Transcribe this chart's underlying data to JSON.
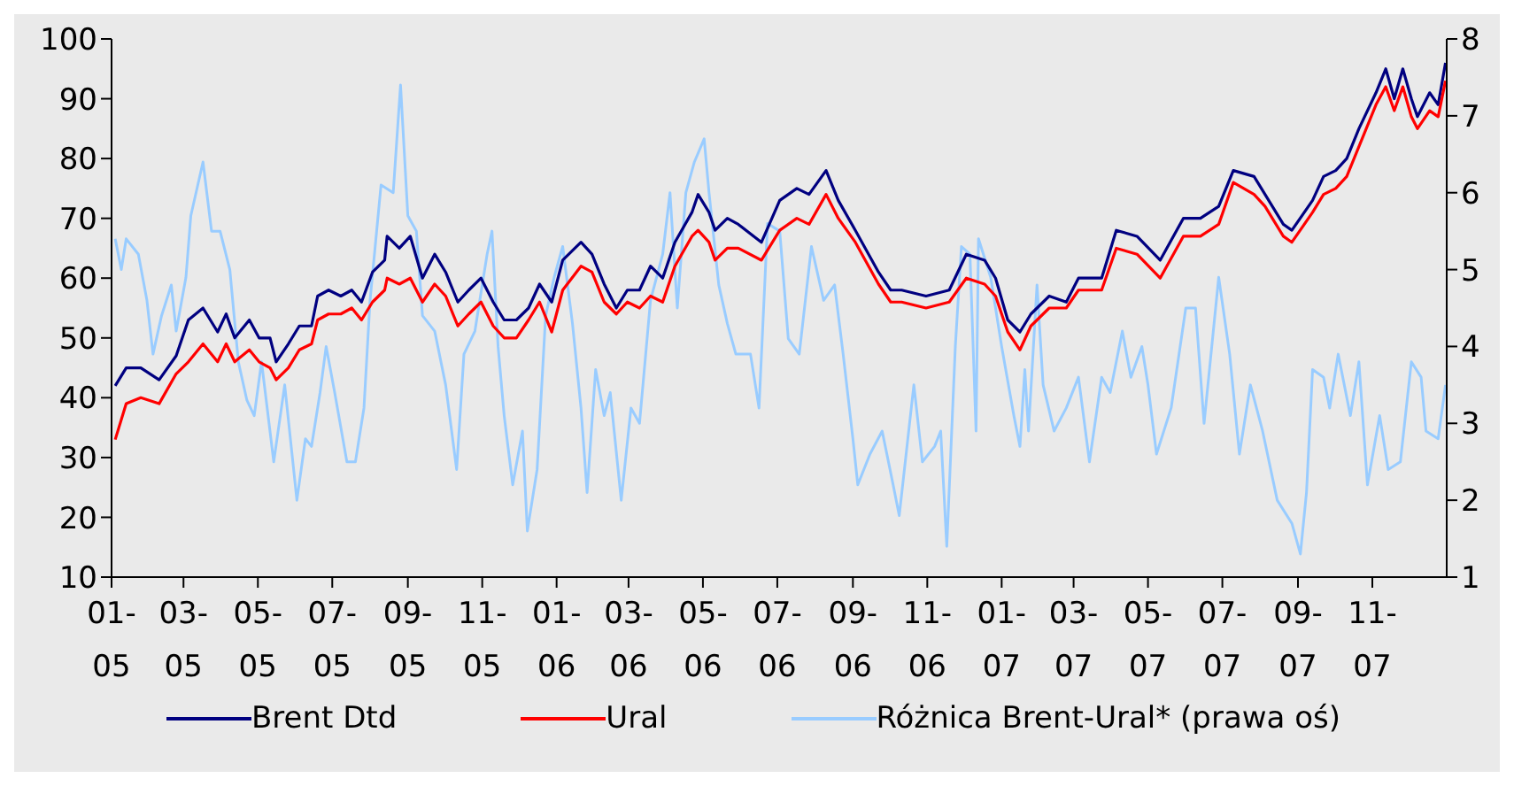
{
  "chart_data": {
    "type": "line",
    "xlim": [
      "2005-01-01",
      "2008-01-01"
    ],
    "xticks": [
      {
        "value": "2005-01-01",
        "label": "01-\n05"
      },
      {
        "value": "2005-03-01",
        "label": "03-\n05"
      },
      {
        "value": "2005-05-01",
        "label": "05-\n05"
      },
      {
        "value": "2005-07-01",
        "label": "07-\n05"
      },
      {
        "value": "2005-09-01",
        "label": "09-\n05"
      },
      {
        "value": "2005-11-01",
        "label": "11-\n05"
      },
      {
        "value": "2006-01-01",
        "label": "01-\n06"
      },
      {
        "value": "2006-03-01",
        "label": "03-\n06"
      },
      {
        "value": "2006-05-01",
        "label": "05-\n06"
      },
      {
        "value": "2006-07-01",
        "label": "07-\n06"
      },
      {
        "value": "2006-09-01",
        "label": "09-\n06"
      },
      {
        "value": "2006-11-01",
        "label": "11-\n06"
      },
      {
        "value": "2007-01-01",
        "label": "01-\n07"
      },
      {
        "value": "2007-03-01",
        "label": "03-\n07"
      },
      {
        "value": "2007-05-01",
        "label": "05-\n07"
      },
      {
        "value": "2007-07-01",
        "label": "07-\n07"
      },
      {
        "value": "2007-09-01",
        "label": "09-\n07"
      },
      {
        "value": "2007-11-01",
        "label": "11-\n07"
      }
    ],
    "ylim": [
      10,
      100
    ],
    "yticks": [
      10,
      20,
      30,
      40,
      50,
      60,
      70,
      80,
      90,
      100
    ],
    "y2lim": [
      1,
      8
    ],
    "y2ticks": [
      1,
      2,
      3,
      4,
      5,
      6,
      7,
      8
    ],
    "legend": "bottom",
    "grid": false,
    "marker": "none",
    "line_style": "solid",
    "x": [
      "2005-01-04",
      "2005-01-13",
      "2005-01-25",
      "2005-02-09",
      "2005-02-23",
      "2005-03-05",
      "2005-03-17",
      "2005-03-29",
      "2005-04-05",
      "2005-04-12",
      "2005-04-24",
      "2005-05-02",
      "2005-05-11",
      "2005-05-16",
      "2005-05-26",
      "2005-06-04",
      "2005-06-14",
      "2005-06-19",
      "2005-06-28",
      "2005-07-08",
      "2005-07-17",
      "2005-07-25",
      "2005-08-03",
      "2005-08-13",
      "2005-08-15",
      "2005-08-25",
      "2005-09-03",
      "2005-09-13",
      "2005-09-23",
      "2005-10-02",
      "2005-10-12",
      "2005-10-21",
      "2005-10-31",
      "2005-11-10",
      "2005-11-19",
      "2005-11-29",
      "2005-12-09",
      "2005-12-18",
      "2005-12-28",
      "2006-01-06",
      "2006-01-21",
      "2006-01-30",
      "2006-02-09",
      "2006-02-19",
      "2006-02-28",
      "2006-03-10",
      "2006-03-19",
      "2006-03-29",
      "2006-04-08",
      "2006-04-22",
      "2006-04-27",
      "2006-05-06",
      "2006-05-11",
      "2006-05-21",
      "2006-05-30",
      "2006-06-18",
      "2006-07-03",
      "2006-07-17",
      "2006-07-27",
      "2006-08-10",
      "2006-08-20",
      "2006-09-03",
      "2006-09-22",
      "2006-10-02",
      "2006-10-11",
      "2006-10-31",
      "2006-11-19",
      "2006-12-03",
      "2006-12-18",
      "2006-12-27",
      "2007-01-06",
      "2007-01-16",
      "2007-01-25",
      "2007-02-09",
      "2007-02-23",
      "2007-03-05",
      "2007-03-24",
      "2007-04-05",
      "2007-04-22",
      "2007-05-11",
      "2007-05-30",
      "2007-06-13",
      "2007-06-28",
      "2007-07-10",
      "2007-07-27",
      "2007-08-05",
      "2007-08-20",
      "2007-08-27",
      "2007-09-13",
      "2007-09-22",
      "2007-10-02",
      "2007-10-11",
      "2007-10-21",
      "2007-11-04",
      "2007-11-12",
      "2007-11-19",
      "2007-11-26",
      "2007-12-03",
      "2007-12-08",
      "2007-12-18",
      "2007-12-25",
      "2007-12-31"
    ],
    "series": [
      {
        "name": "Brent Dtd",
        "color": "#000080",
        "values": [
          42,
          45,
          45,
          43,
          47,
          53,
          55,
          51,
          54,
          50,
          53,
          50,
          50,
          46,
          49,
          52,
          52,
          57,
          58,
          57,
          58,
          56,
          61,
          63,
          67,
          65,
          67,
          60,
          64,
          61,
          56,
          58,
          60,
          56,
          53,
          53,
          55,
          59,
          56,
          63,
          66,
          64,
          59,
          55,
          58,
          58,
          62,
          60,
          66,
          71,
          74,
          71,
          68,
          70,
          69,
          66,
          73,
          75,
          74,
          78,
          73,
          68,
          61,
          58,
          58,
          57,
          58,
          64,
          63,
          60,
          53,
          51,
          54,
          57,
          56,
          60,
          60,
          68,
          67,
          63,
          70,
          70,
          72,
          78,
          77,
          74,
          69,
          68,
          73,
          77,
          78,
          80,
          85,
          91,
          95,
          90,
          95,
          90,
          87,
          91,
          89,
          96
        ]
      },
      {
        "name": "Ural",
        "color": "#ff0000",
        "values": [
          33,
          39,
          40,
          39,
          44,
          46,
          49,
          46,
          49,
          46,
          48,
          46,
          45,
          43,
          45,
          48,
          49,
          53,
          54,
          54,
          55,
          53,
          56,
          58,
          60,
          59,
          60,
          56,
          59,
          57,
          52,
          54,
          56,
          52,
          50,
          50,
          53,
          56,
          51,
          58,
          62,
          61,
          56,
          54,
          56,
          55,
          57,
          56,
          62,
          67,
          68,
          66,
          63,
          65,
          65,
          63,
          68,
          70,
          69,
          74,
          70,
          66,
          59,
          56,
          56,
          55,
          56,
          60,
          59,
          57,
          51,
          48,
          52,
          55,
          55,
          58,
          58,
          65,
          64,
          60,
          67,
          67,
          69,
          76,
          74,
          72,
          67,
          66,
          71,
          74,
          75,
          77,
          82,
          89,
          92,
          88,
          92,
          87,
          85,
          88,
          87,
          93
        ]
      },
      {
        "name": "Różnica Brent-Ural* (prawa oś)",
        "color": "#99ccff",
        "axis": "y2",
        "x": [
          "2005-01-04",
          "2005-01-09",
          "2005-01-13",
          "2005-01-23",
          "2005-01-30",
          "2005-02-04",
          "2005-02-11",
          "2005-02-19",
          "2005-02-23",
          "2005-03-03",
          "2005-03-07",
          "2005-03-17",
          "2005-03-24",
          "2005-03-31",
          "2005-04-08",
          "2005-04-15",
          "2005-04-22",
          "2005-04-28",
          "2005-05-04",
          "2005-05-14",
          "2005-05-23",
          "2005-06-02",
          "2005-06-09",
          "2005-06-14",
          "2005-06-21",
          "2005-06-26",
          "2005-07-03",
          "2005-07-13",
          "2005-07-20",
          "2005-07-27",
          "2005-08-01",
          "2005-08-10",
          "2005-08-20",
          "2005-08-26",
          "2005-09-01",
          "2005-09-08",
          "2005-09-13",
          "2005-09-23",
          "2005-10-02",
          "2005-10-11",
          "2005-10-17",
          "2005-10-26",
          "2005-11-05",
          "2005-11-09",
          "2005-11-14",
          "2005-11-19",
          "2005-11-26",
          "2005-12-04",
          "2005-12-08",
          "2005-12-16",
          "2005-12-23",
          "2005-12-30",
          "2006-01-06",
          "2006-01-14",
          "2006-01-21",
          "2006-01-26",
          "2006-02-02",
          "2006-02-09",
          "2006-02-14",
          "2006-02-23",
          "2006-03-03",
          "2006-03-10",
          "2006-03-19",
          "2006-03-29",
          "2006-04-04",
          "2006-04-10",
          "2006-04-17",
          "2006-04-24",
          "2006-05-02",
          "2006-05-06",
          "2006-05-14",
          "2006-05-21",
          "2006-05-28",
          "2006-06-09",
          "2006-06-16",
          "2006-06-23",
          "2006-07-03",
          "2006-07-10",
          "2006-07-19",
          "2006-07-29",
          "2006-08-08",
          "2006-08-17",
          "2006-08-24",
          "2006-09-01",
          "2006-09-05",
          "2006-09-15",
          "2006-09-25",
          "2006-10-04",
          "2006-10-09",
          "2006-10-21",
          "2006-10-28",
          "2006-11-07",
          "2006-11-12",
          "2006-11-17",
          "2006-11-24",
          "2006-11-29",
          "2006-12-06",
          "2006-12-11",
          "2006-12-13",
          "2006-12-23",
          "2007-01-01",
          "2007-01-11",
          "2007-01-16",
          "2007-01-20",
          "2007-01-23",
          "2007-01-30",
          "2007-02-04",
          "2007-02-13",
          "2007-02-23",
          "2007-03-05",
          "2007-03-14",
          "2007-03-24",
          "2007-03-31",
          "2007-04-10",
          "2007-04-17",
          "2007-04-26",
          "2007-05-01",
          "2007-05-08",
          "2007-05-20",
          "2007-06-01",
          "2007-06-09",
          "2007-06-16",
          "2007-06-28",
          "2007-07-07",
          "2007-07-15",
          "2007-07-24",
          "2007-08-03",
          "2007-08-15",
          "2007-08-27",
          "2007-09-03",
          "2007-09-08",
          "2007-09-13",
          "2007-09-22",
          "2007-09-27",
          "2007-10-04",
          "2007-10-14",
          "2007-10-21",
          "2007-10-28",
          "2007-11-07",
          "2007-11-14",
          "2007-11-24",
          "2007-12-03",
          "2007-12-11",
          "2007-12-15",
          "2007-12-25",
          "2007-12-31"
        ],
        "values": [
          5.4,
          5.0,
          5.4,
          5.2,
          4.6,
          3.9,
          4.4,
          4.8,
          4.2,
          4.9,
          5.7,
          6.4,
          5.5,
          5.5,
          5.0,
          3.8,
          3.3,
          3.1,
          3.8,
          2.5,
          3.5,
          2.0,
          2.8,
          2.7,
          3.4,
          4.0,
          3.4,
          2.5,
          2.5,
          3.2,
          4.6,
          6.1,
          6.0,
          7.4,
          5.7,
          5.5,
          4.4,
          4.2,
          3.5,
          2.4,
          3.9,
          4.2,
          5.2,
          5.5,
          4.0,
          3.1,
          2.2,
          2.9,
          1.6,
          2.4,
          4.4,
          4.9,
          5.3,
          4.3,
          3.2,
          2.1,
          3.7,
          3.1,
          3.4,
          2.0,
          3.2,
          3.0,
          4.6,
          5.2,
          6.0,
          4.5,
          6.0,
          6.4,
          6.7,
          6.0,
          4.8,
          4.3,
          3.9,
          3.9,
          3.2,
          5.6,
          5.5,
          4.1,
          3.9,
          5.3,
          4.6,
          4.8,
          3.9,
          2.8,
          2.2,
          2.6,
          2.9,
          2.2,
          1.8,
          3.5,
          2.5,
          2.7,
          2.9,
          1.4,
          4.0,
          5.3,
          5.2,
          2.9,
          5.4,
          4.9,
          4.0,
          3.1,
          2.7,
          3.7,
          2.9,
          4.8,
          3.5,
          2.9,
          3.2,
          3.6,
          2.5,
          3.6,
          3.4,
          4.2,
          3.6,
          4.0,
          3.5,
          2.6,
          3.2,
          4.5,
          4.5,
          3.0,
          4.9,
          3.9,
          2.6,
          3.5,
          2.9,
          2.0,
          1.7,
          1.3,
          2.1,
          3.7,
          3.6,
          3.2,
          3.9,
          3.1,
          3.8,
          2.2,
          3.1,
          2.4,
          2.5,
          3.8,
          3.6,
          2.9,
          2.8,
          3.5
        ]
      }
    ]
  }
}
